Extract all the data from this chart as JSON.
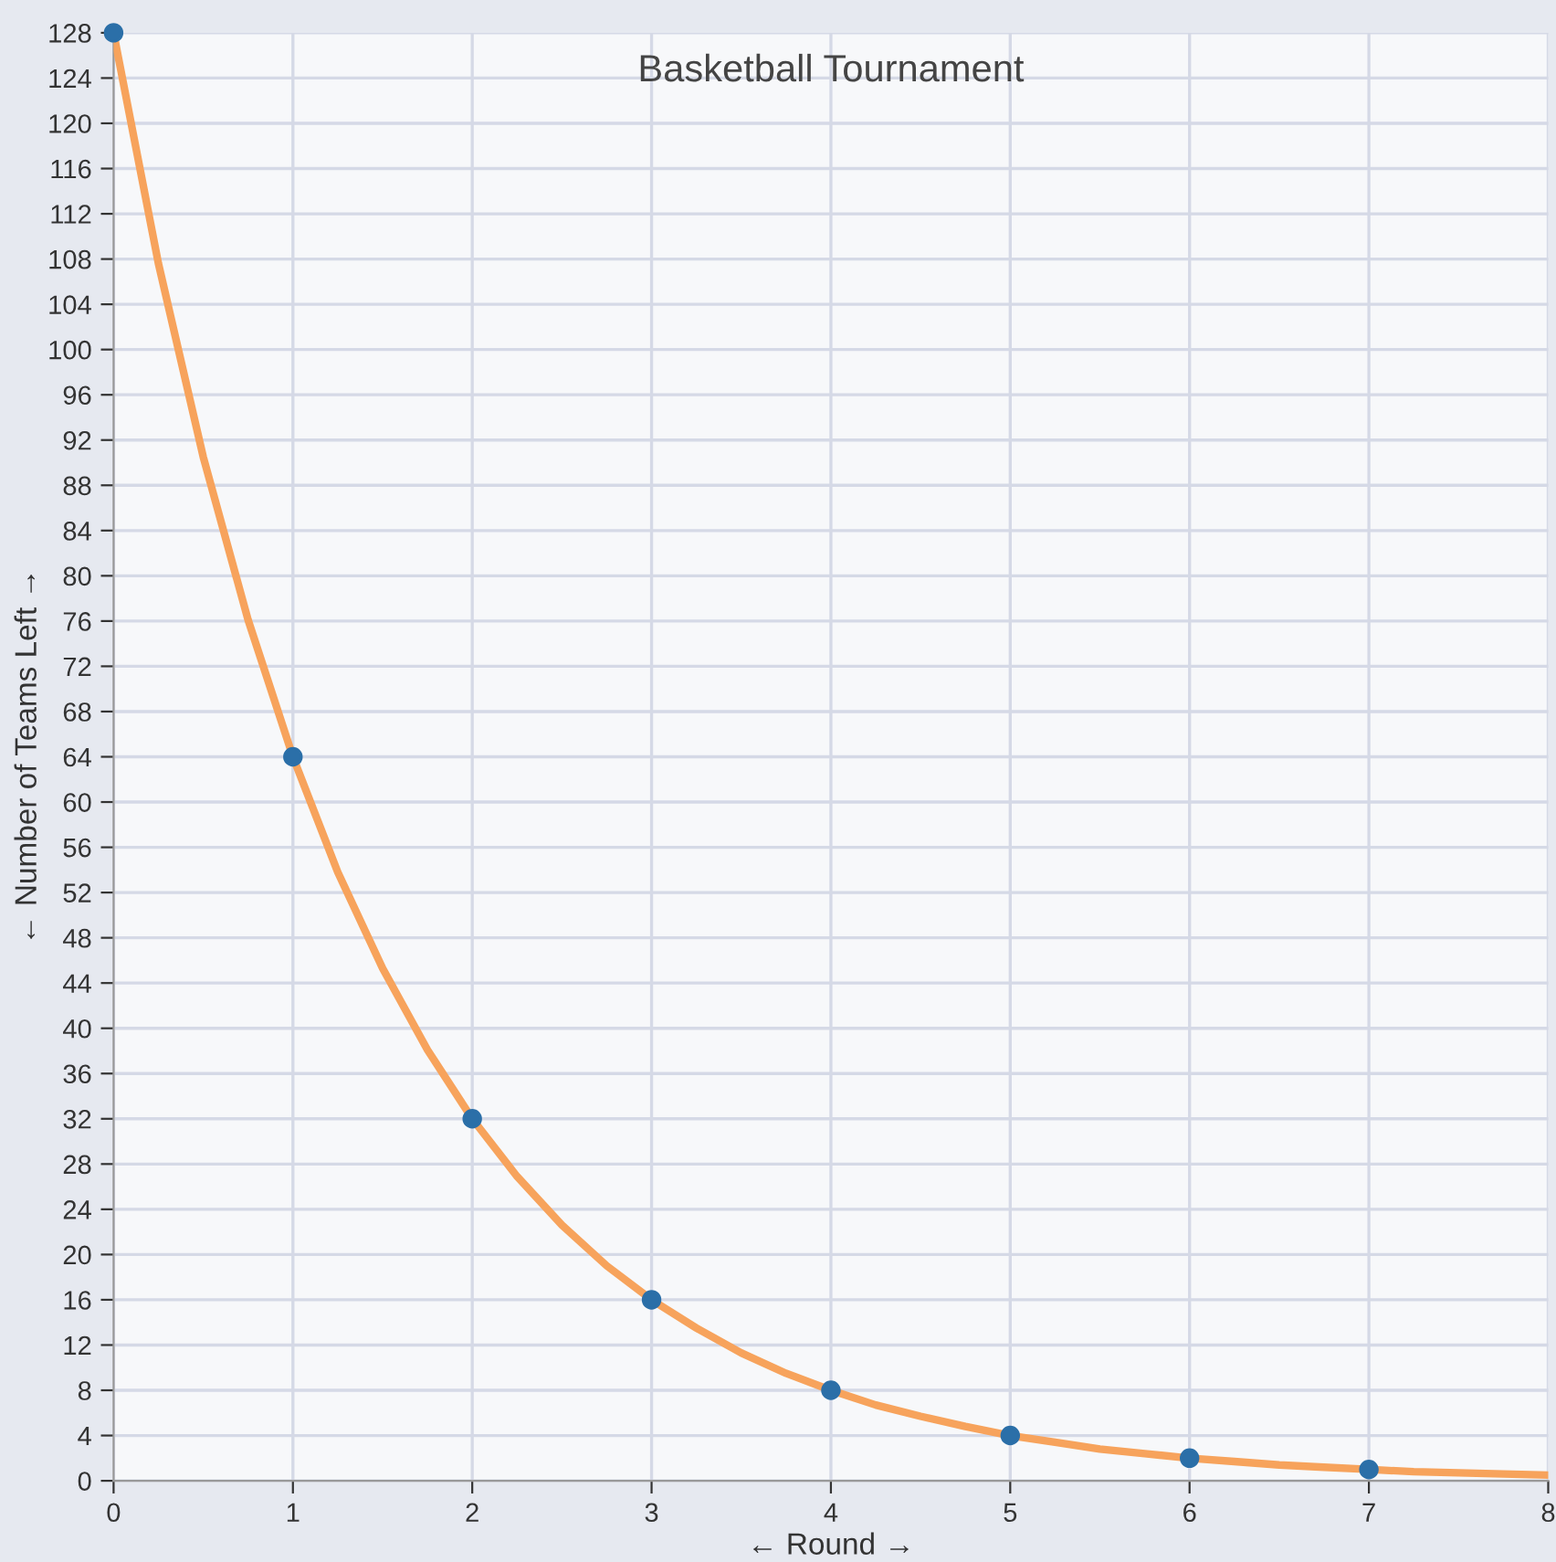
{
  "chart_data": {
    "type": "line",
    "title": "Basketball Tournament",
    "xlabel": "← Round →",
    "ylabel": "← Number of Teams Left →",
    "x": [
      0,
      1,
      2,
      3,
      4,
      5,
      6,
      7
    ],
    "series": [
      {
        "color": "#f7a35c",
        "x": [
          0,
          0.25,
          0.5,
          0.75,
          1,
          1.25,
          1.5,
          1.75,
          2,
          2.25,
          2.5,
          2.75,
          3,
          3.25,
          3.5,
          3.75,
          4,
          4.25,
          4.5,
          4.75,
          5,
          5.25,
          5.5,
          5.75,
          6,
          6.25,
          6.5,
          6.75,
          7,
          7.25,
          7.5,
          7.75,
          8
        ],
        "values": [
          128,
          107.6,
          90.5,
          76.1,
          64,
          53.8,
          45.3,
          38.1,
          32,
          26.9,
          22.6,
          19.0,
          16,
          13.5,
          11.3,
          9.5,
          8,
          6.7,
          5.7,
          4.8,
          4,
          3.4,
          2.8,
          2.4,
          2,
          1.7,
          1.4,
          1.2,
          1,
          0.8,
          0.7,
          0.6,
          0.5
        ]
      },
      {
        "type": "scatter",
        "marker": "circle",
        "color": "#2b6fa8",
        "values": [
          128,
          64,
          32,
          16,
          8,
          4,
          2,
          1
        ]
      }
    ],
    "xlim": [
      0,
      8
    ],
    "xticks": [
      0,
      1,
      2,
      3,
      4,
      5,
      6,
      7,
      8
    ],
    "ylim": [
      0,
      128
    ],
    "yticks": [
      0,
      4,
      8,
      12,
      16,
      20,
      24,
      28,
      32,
      36,
      40,
      44,
      48,
      52,
      56,
      60,
      64,
      68,
      72,
      76,
      80,
      84,
      88,
      92,
      96,
      100,
      104,
      108,
      112,
      116,
      120,
      124,
      128
    ],
    "grid": true
  }
}
